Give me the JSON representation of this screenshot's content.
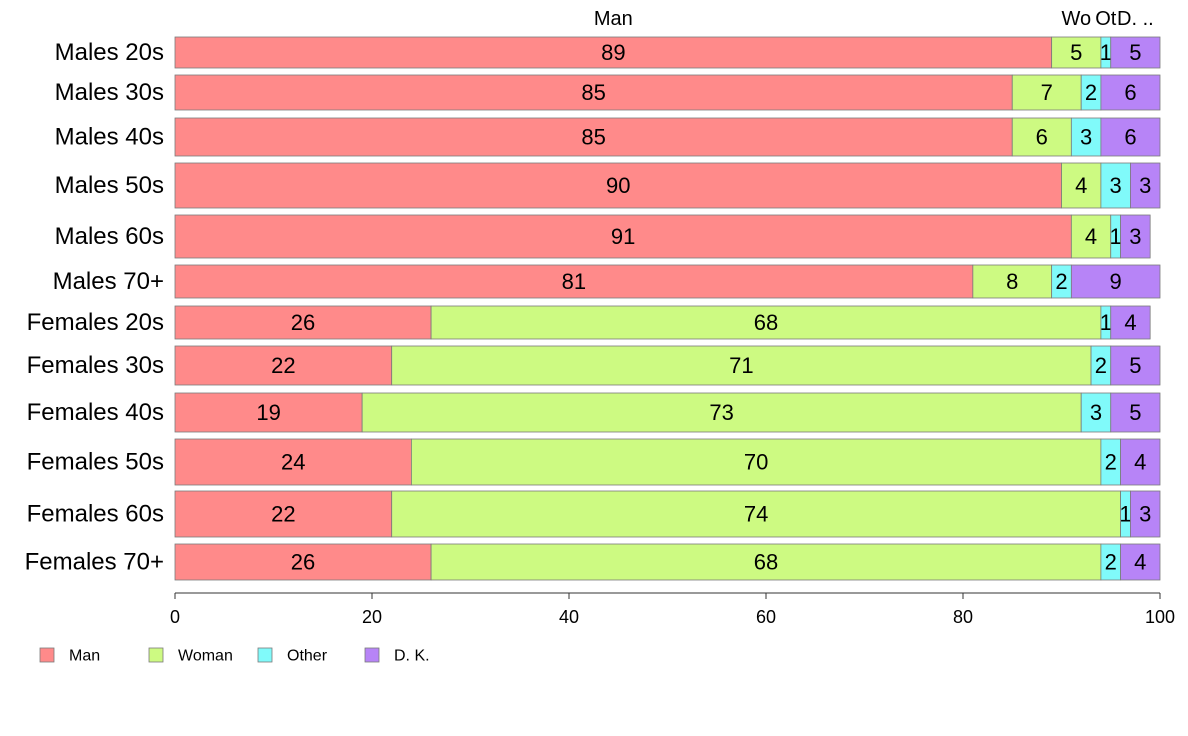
{
  "chart_data": {
    "type": "bar",
    "orientation": "horizontal",
    "stacked": true,
    "categories": [
      "Males 20s",
      "Males 30s",
      "Males 40s",
      "Males 50s",
      "Males 60s",
      "Males 70+",
      "Females 20s",
      "Females 30s",
      "Females 40s",
      "Females 50s",
      "Females 60s",
      "Females 70+"
    ],
    "series": [
      {
        "name": "Man",
        "color": "#ff8a8a",
        "values": [
          89,
          85,
          85,
          90,
          91,
          81,
          26,
          22,
          19,
          24,
          22,
          26
        ]
      },
      {
        "name": "Woman",
        "color": "#cdfa82",
        "values": [
          5,
          7,
          6,
          4,
          4,
          8,
          68,
          71,
          73,
          70,
          74,
          68
        ]
      },
      {
        "name": "Other",
        "color": "#80fafa",
        "values": [
          1,
          2,
          3,
          3,
          1,
          2,
          1,
          2,
          3,
          2,
          1,
          2
        ]
      },
      {
        "name": "D. K.",
        "color": "#b784f7",
        "values": [
          5,
          6,
          6,
          3,
          3,
          9,
          4,
          5,
          5,
          4,
          3,
          4
        ]
      }
    ],
    "top_labels": [
      "Man",
      "Wo",
      "Ot",
      "D. .."
    ],
    "xlim": [
      0,
      100
    ],
    "xticks": [
      "0",
      "20",
      "40",
      "60",
      "80",
      "100"
    ],
    "legend_position": "bottom-left",
    "grid": false
  }
}
